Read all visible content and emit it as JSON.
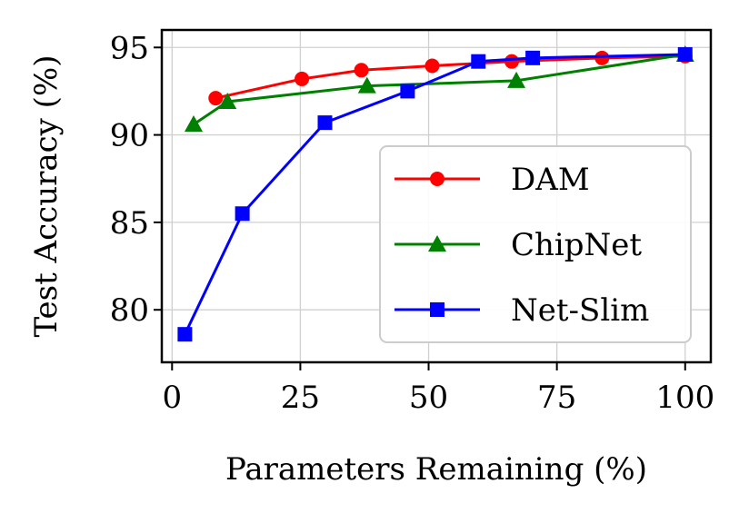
{
  "chart_data": {
    "type": "line",
    "title": "",
    "xlabel": "Parameters Remaining (%)",
    "ylabel": "Test Accuracy (%)",
    "xlim": [
      -2,
      105
    ],
    "ylim": [
      77,
      96
    ],
    "xticks": [
      0,
      25,
      50,
      75,
      100
    ],
    "yticks": [
      80,
      85,
      90,
      95
    ],
    "grid": true,
    "legend_position": "lower-right",
    "series": [
      {
        "name": "DAM",
        "color": "#ff0000",
        "marker": "circle",
        "x": [
          8.5,
          25.3,
          36.9,
          50.7,
          66.2,
          83.8,
          100
        ],
        "y": [
          92.1,
          93.2,
          93.7,
          93.95,
          94.2,
          94.4,
          94.5
        ]
      },
      {
        "name": "ChipNet",
        "color": "#008000",
        "marker": "triangle",
        "x": [
          4.2,
          10.8,
          38.0,
          67.1,
          100
        ],
        "y": [
          90.6,
          91.9,
          92.8,
          93.1,
          94.6
        ]
      },
      {
        "name": "Net-Slim",
        "color": "#0000ff",
        "marker": "square",
        "x": [
          2.5,
          13.7,
          29.8,
          45.9,
          59.7,
          70.3,
          100
        ],
        "y": [
          78.6,
          85.5,
          90.7,
          92.5,
          94.2,
          94.4,
          94.6
        ]
      }
    ]
  }
}
